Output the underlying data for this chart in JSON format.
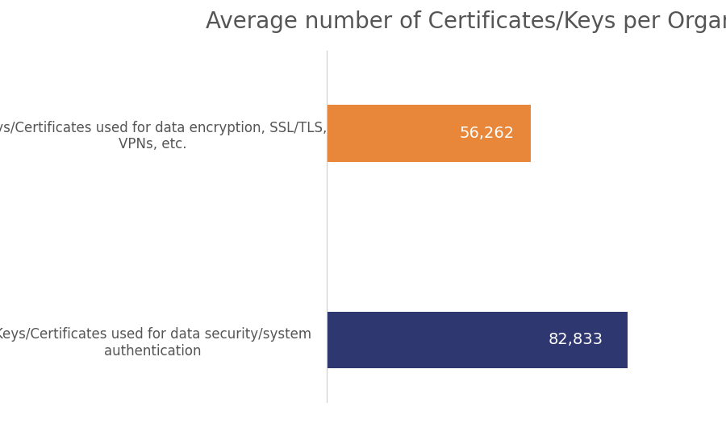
{
  "title": "Average number of Certificates/Keys per Organization",
  "categories": [
    "Keys/Certificates used for data security/system\nauthentication",
    "Keys/Certificates used for data encryption, SSL/TLS,\nVPNs, etc."
  ],
  "values": [
    82833,
    56262
  ],
  "bar_colors": [
    "#2e3770",
    "#e8873a"
  ],
  "label_texts": [
    "82,833",
    "56,262"
  ],
  "background_color": "#ffffff",
  "title_color": "#555555",
  "label_color": "#ffffff",
  "title_fontsize": 20,
  "label_fontsize": 14,
  "ytick_fontsize": 12,
  "bar_height": 0.55,
  "xlim": [
    0,
    100000
  ],
  "figsize": [
    9.0,
    5.25
  ],
  "dpi": 100,
  "spine_color": "#cccccc"
}
